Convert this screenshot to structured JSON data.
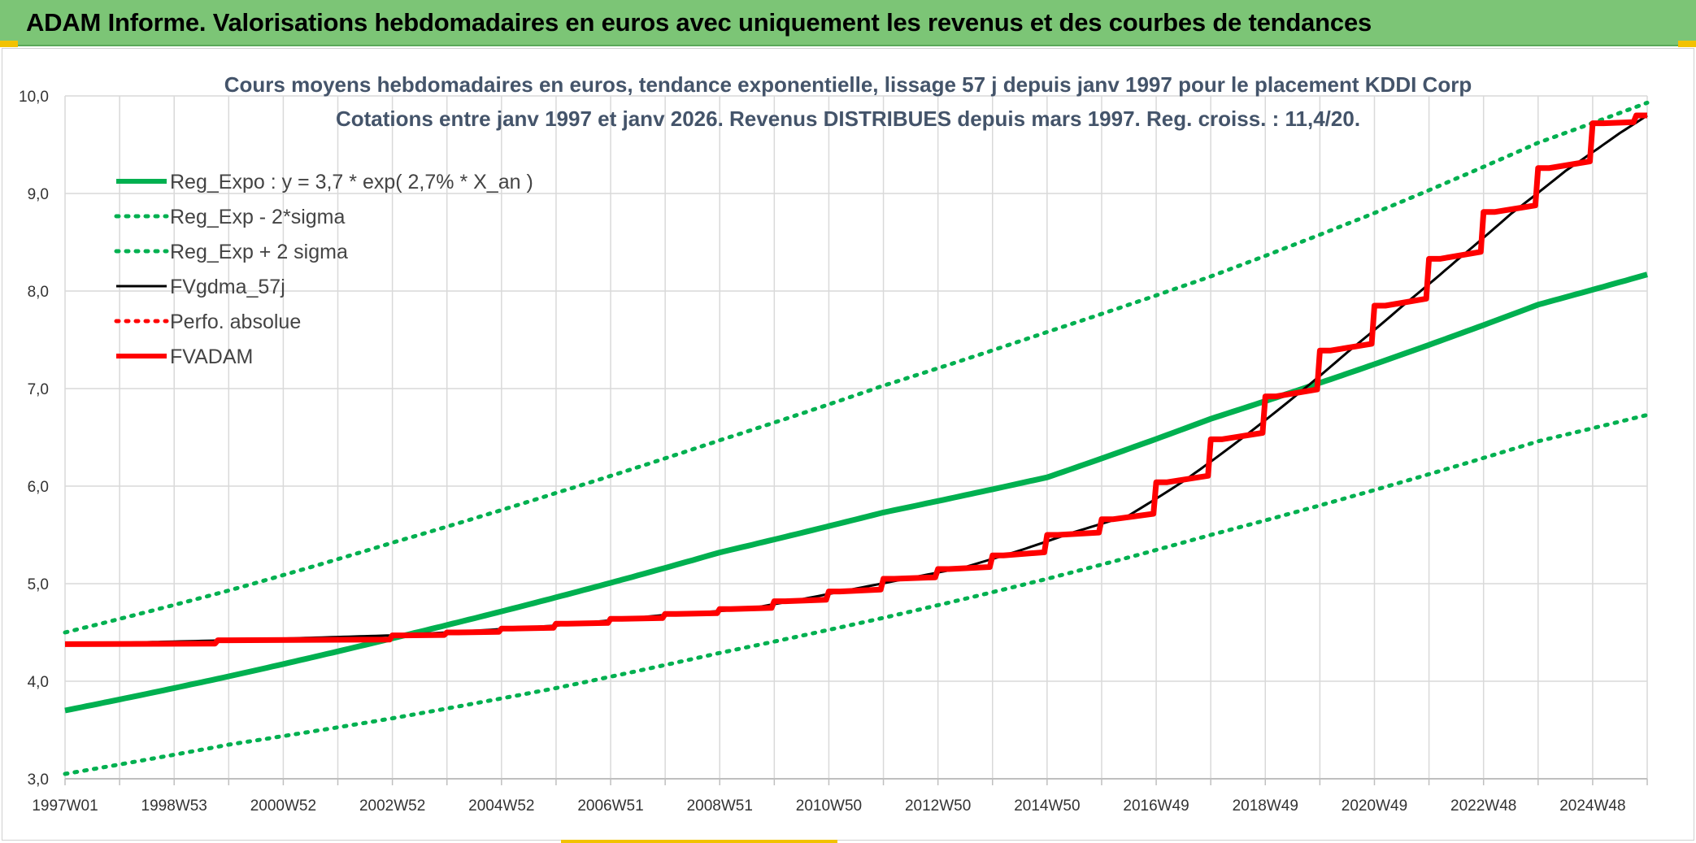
{
  "banner": {
    "title": "ADAM Informe. Valorisations hebdomadaires en euros avec uniquement les revenus et des courbes de tendances"
  },
  "chart_data": {
    "type": "line",
    "title": "Cours moyens hebdomadaires en euros, tendance exponentielle, lissage 57 j depuis janv 1997 pour le placement KDDI Corp",
    "subtitle": "Cotations entre janv 1997 et janv 2026. Revenus DISTRIBUES depuis mars 1997. Reg. croiss. : 11,4/20.",
    "x_start_year": 1997.0,
    "x_end_year": 2026.0,
    "x_tick_labels": [
      "1997W01",
      "1998W53",
      "2000W52",
      "2002W52",
      "2004W52",
      "2006W51",
      "2008W51",
      "2010W50",
      "2012W50",
      "2014W50",
      "2016W49",
      "2018W49",
      "2020W49",
      "2022W48",
      "2024W48"
    ],
    "ylim": [
      3.0,
      10.0
    ],
    "y_ticks": [
      "3,0",
      "4,0",
      "5,0",
      "6,0",
      "7,0",
      "8,0",
      "9,0",
      "10,0"
    ],
    "grid": true,
    "legend_position": "top-left",
    "series": [
      {
        "name": "Reg_Expo : y = 3,7 * exp( 2,7% *  X_an )",
        "color": "#00b050",
        "style": "solid-thick",
        "x": [
          1997,
          2000,
          2003,
          2006,
          2009,
          2012,
          2015,
          2018,
          2021,
          2024,
          2026
        ],
        "y": [
          3.7,
          4.05,
          4.44,
          4.86,
          5.32,
          5.73,
          6.09,
          6.69,
          7.25,
          7.86,
          8.17
        ]
      },
      {
        "name": "Reg_Exp - 2*sigma",
        "color": "#00b050",
        "style": "dotted",
        "x": [
          1997,
          2000,
          2003,
          2006,
          2009,
          2012,
          2015,
          2018,
          2021,
          2024,
          2026
        ],
        "y": [
          3.05,
          3.35,
          3.62,
          3.93,
          4.29,
          4.65,
          5.05,
          5.5,
          5.96,
          6.46,
          6.73
        ]
      },
      {
        "name": "Reg_Exp + 2 sigma",
        "color": "#00b050",
        "style": "dotted",
        "x": [
          1997,
          2000,
          2003,
          2006,
          2009,
          2012,
          2015,
          2018,
          2021,
          2024,
          2026
        ],
        "y": [
          4.5,
          4.93,
          5.42,
          5.93,
          6.47,
          7.03,
          7.58,
          8.15,
          8.8,
          9.52,
          9.93
        ]
      },
      {
        "name": "FVgdma_57j",
        "color": "#000000",
        "style": "solid",
        "x": [
          1997,
          2000,
          2003,
          2004,
          2006,
          2008,
          2009.5,
          2010.5,
          2011.5,
          2012.5,
          2013.5,
          2014.5,
          2015.5,
          2016.5,
          2017.5,
          2018.5,
          2019.5,
          2020.5,
          2021.5,
          2022.5,
          2023.5,
          2024.5,
          2025.5,
          2026
        ],
        "y": [
          4.38,
          4.42,
          4.47,
          4.5,
          4.57,
          4.68,
          4.74,
          4.84,
          4.95,
          5.06,
          5.17,
          5.34,
          5.53,
          5.7,
          6.05,
          6.46,
          6.9,
          7.37,
          7.84,
          8.31,
          8.79,
          9.23,
          9.62,
          9.8
        ]
      },
      {
        "name": "Perfo. absolue",
        "color": "#ff0000",
        "style": "dotted",
        "x": [],
        "y": []
      },
      {
        "name": "FVADAM",
        "color": "#ff0000",
        "style": "step-thick",
        "x": [
          1997.0,
          2000.0,
          2003.2,
          2004.2,
          2005.2,
          2006.2,
          2007.2,
          2008.2,
          2009.2,
          2010.2,
          2011.2,
          2012.2,
          2013.2,
          2014.2,
          2015.2,
          2016.2,
          2017.2,
          2018.2,
          2019.2,
          2020.2,
          2021.2,
          2022.2,
          2023.2,
          2024.2,
          2025.2,
          2026.0
        ],
        "y": [
          4.38,
          4.42,
          4.47,
          4.5,
          4.54,
          4.59,
          4.64,
          4.69,
          4.74,
          4.82,
          4.92,
          5.05,
          5.15,
          5.29,
          5.5,
          5.66,
          6.04,
          6.48,
          6.92,
          7.39,
          7.85,
          8.33,
          8.81,
          9.26,
          9.72,
          9.8
        ],
        "y_mid": [
          4.38,
          4.42,
          4.48,
          4.52,
          4.56,
          4.61,
          4.66,
          4.71,
          4.77,
          4.86,
          4.96,
          5.08,
          5.2,
          5.33,
          5.52,
          5.78,
          6.18,
          6.58,
          7.02,
          7.48,
          7.95,
          8.43,
          8.89,
          9.32,
          9.72,
          9.8
        ]
      }
    ]
  }
}
